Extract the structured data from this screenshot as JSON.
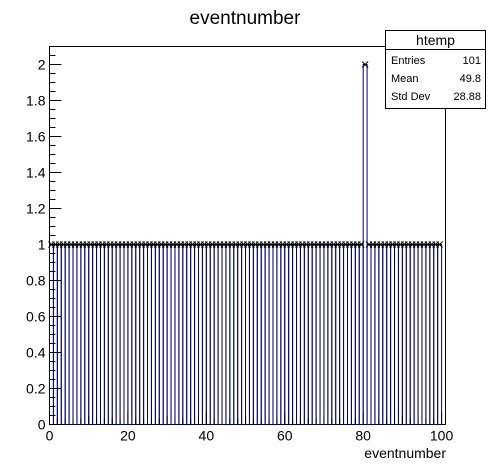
{
  "chart_data": {
    "type": "bar",
    "title": "eventnumber",
    "xlabel": "eventnumber",
    "ylabel": "",
    "xlim": [
      0,
      101
    ],
    "ylim": [
      0,
      2.1
    ],
    "bin_width": 1,
    "x_ticks": [
      0,
      20,
      40,
      60,
      80,
      100
    ],
    "y_ticks": [
      0,
      0.2,
      0.4,
      0.6,
      0.8,
      1,
      1.2,
      1.4,
      1.6,
      1.8,
      2
    ],
    "y_tick_labels": [
      "0",
      "0.2",
      "0.4",
      "0.6",
      "0.8",
      "1",
      "1.2",
      "1.4",
      "1.6",
      "1.8",
      "2"
    ],
    "series": [
      {
        "bins_start": 0,
        "values": [
          1,
          1,
          1,
          1,
          1,
          1,
          1,
          1,
          1,
          1,
          1,
          1,
          1,
          1,
          1,
          1,
          1,
          1,
          1,
          1,
          1,
          1,
          1,
          1,
          1,
          1,
          1,
          1,
          1,
          1,
          1,
          1,
          1,
          1,
          1,
          1,
          1,
          1,
          1,
          1,
          1,
          1,
          1,
          1,
          1,
          1,
          1,
          1,
          1,
          1,
          1,
          1,
          1,
          1,
          1,
          1,
          1,
          1,
          1,
          1,
          1,
          1,
          1,
          1,
          1,
          1,
          1,
          1,
          1,
          1,
          1,
          1,
          1,
          1,
          1,
          1,
          1,
          1,
          1,
          1,
          2,
          1,
          1,
          1,
          1,
          1,
          1,
          1,
          1,
          1,
          1,
          1,
          1,
          1,
          1,
          1,
          1,
          1,
          1,
          1
        ],
        "marker": "x",
        "color": "#000080"
      }
    ],
    "legend": {
      "position": "top-right",
      "name": "htemp",
      "rows": [
        {
          "label": "Entries",
          "value": "101"
        },
        {
          "label": "Mean",
          "value": "49.8"
        },
        {
          "label": "Std Dev",
          "value": "28.88"
        }
      ]
    },
    "grid": false
  }
}
